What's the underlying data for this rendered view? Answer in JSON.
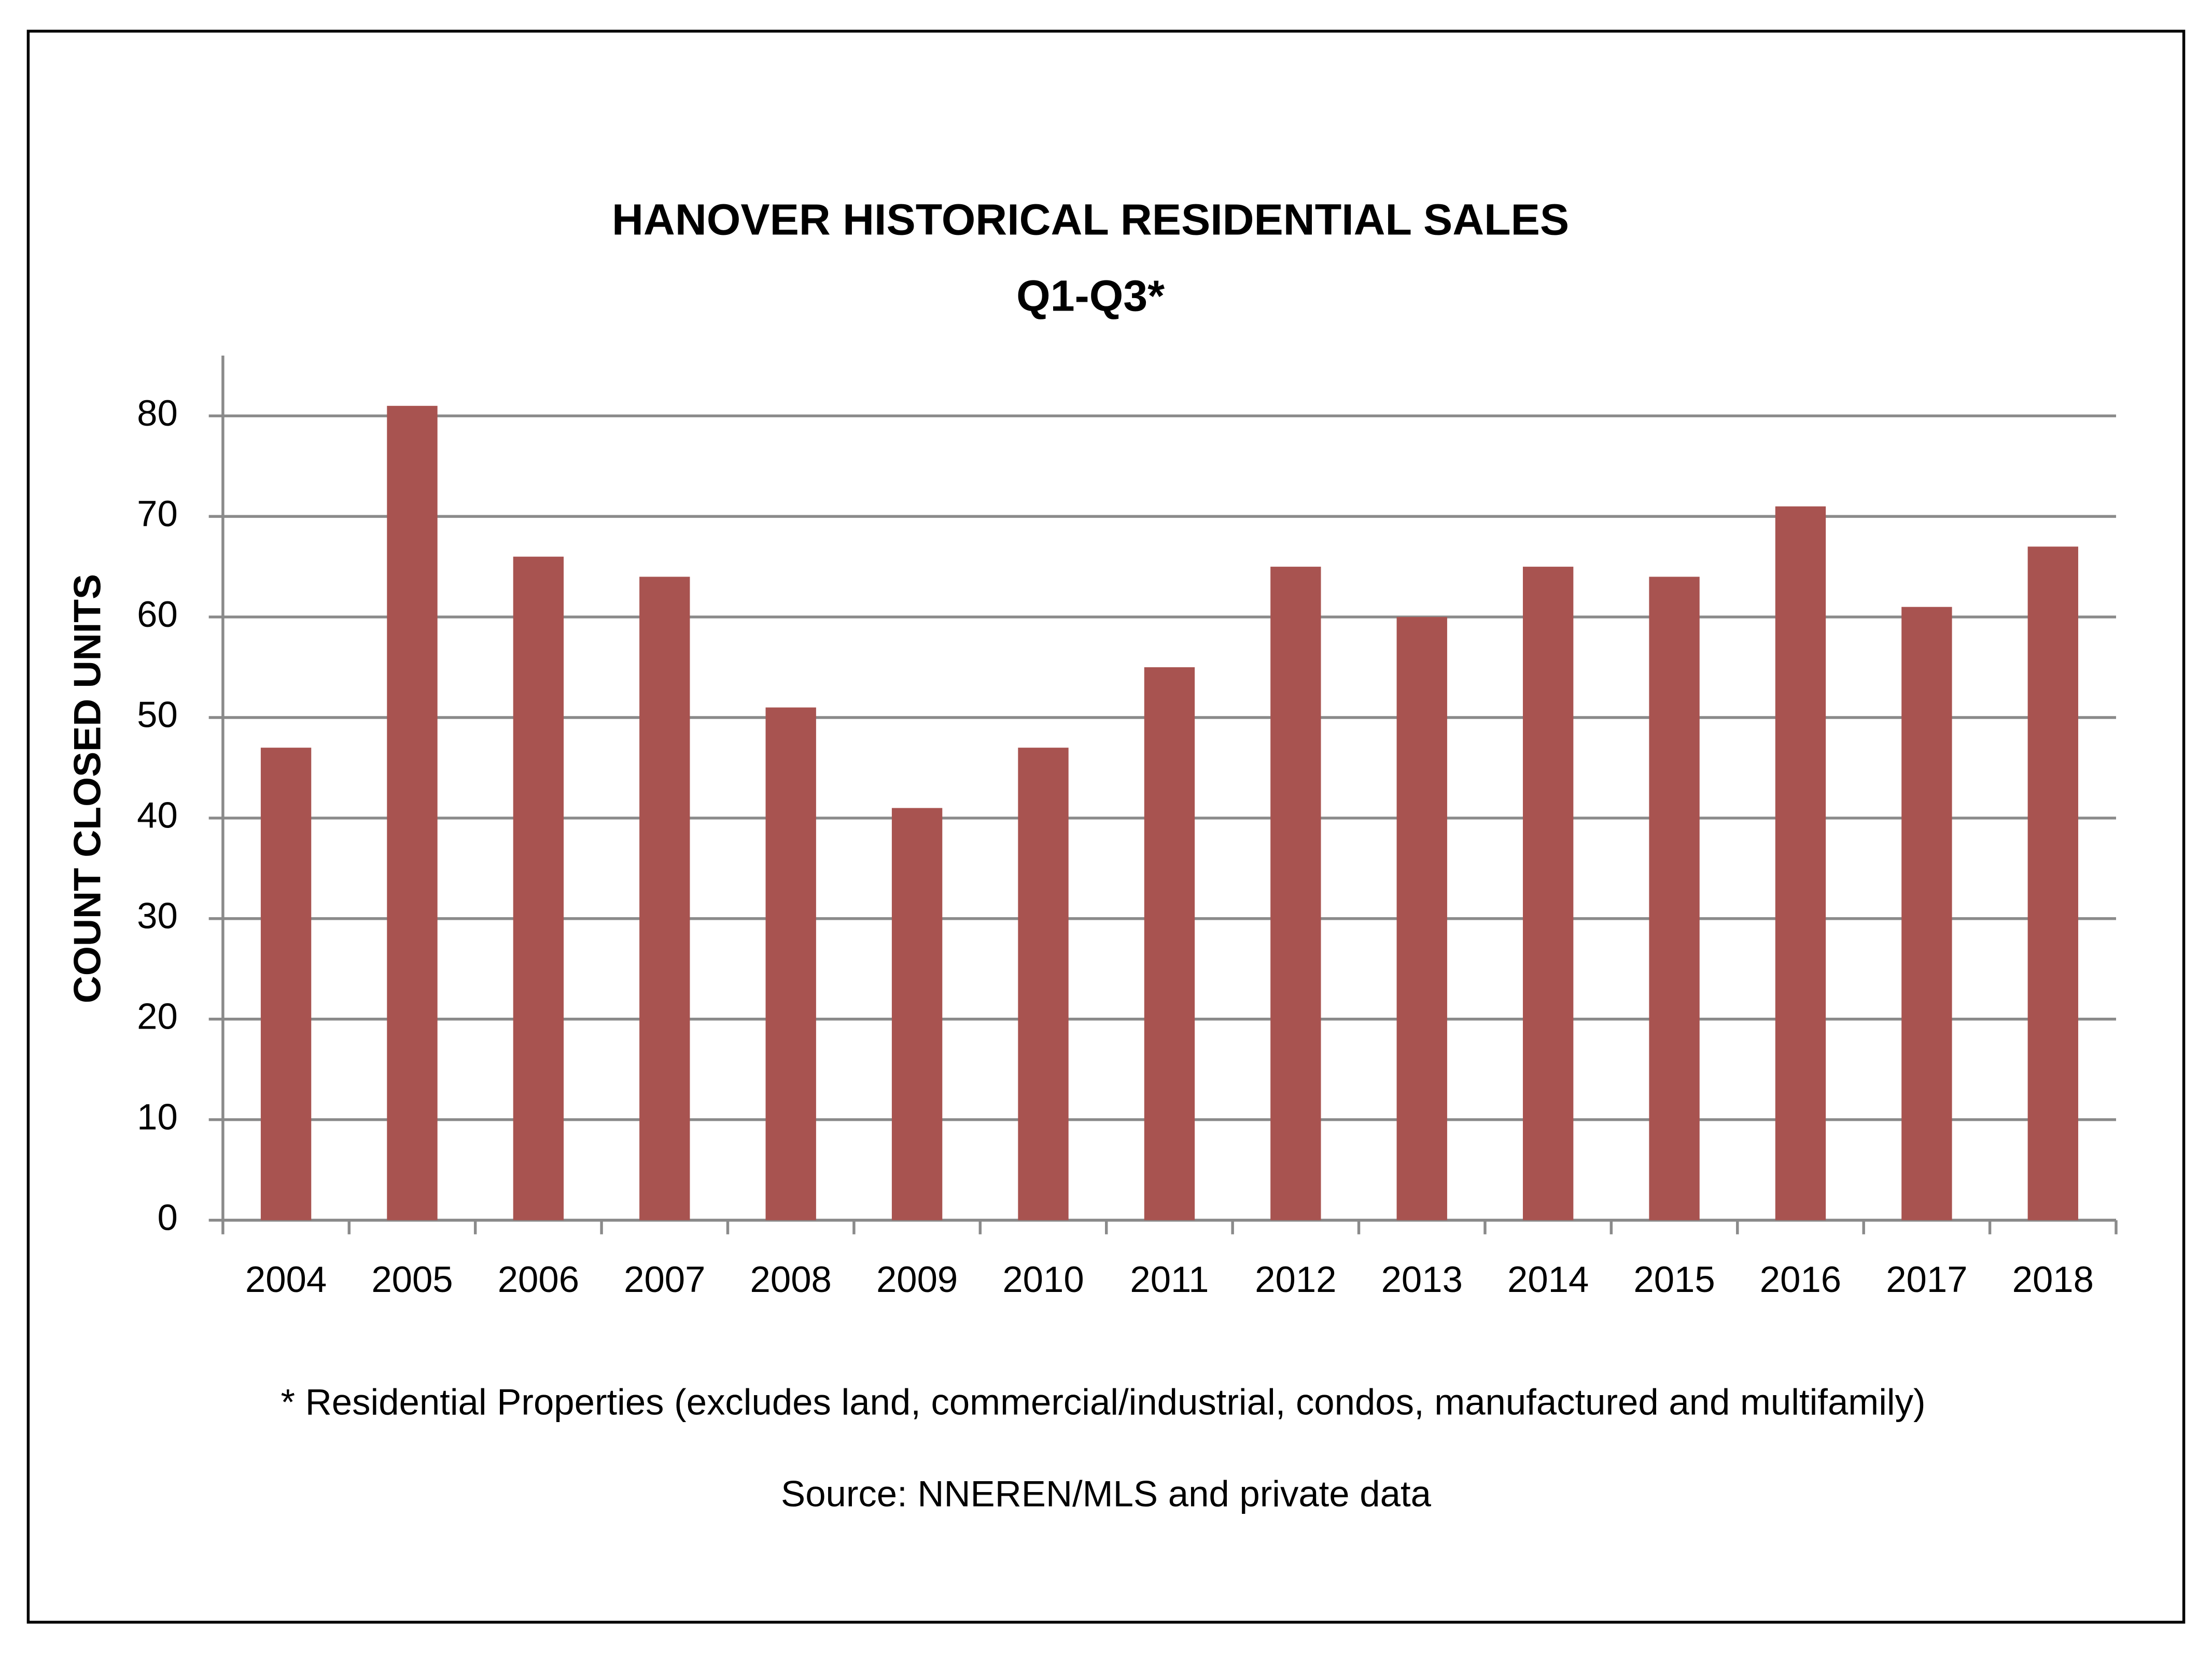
{
  "chart_data": {
    "type": "bar",
    "title": "HANOVER HISTORICAL RESIDENTIAL SALES",
    "subtitle": "Q1-Q3*",
    "y_label": "COUNT CLOSED UNITS",
    "categories": [
      "2004",
      "2005",
      "2006",
      "2007",
      "2008",
      "2009",
      "2010",
      "2011",
      "2012",
      "2013",
      "2014",
      "2015",
      "2016",
      "2017",
      "2018"
    ],
    "values": [
      47,
      81,
      66,
      64,
      51,
      41,
      47,
      55,
      65,
      60,
      65,
      64,
      71,
      61,
      67
    ],
    "color": "#a85350",
    "ylim": [
      0,
      86
    ],
    "yticks": [
      0,
      10,
      20,
      30,
      40,
      50,
      60,
      70,
      80
    ],
    "grid": true,
    "footnote": "* Residential Properties (excludes land, commercial/industrial, condos, manufactured and multifamily)",
    "source": "Source: NNEREN/MLS and private data"
  }
}
